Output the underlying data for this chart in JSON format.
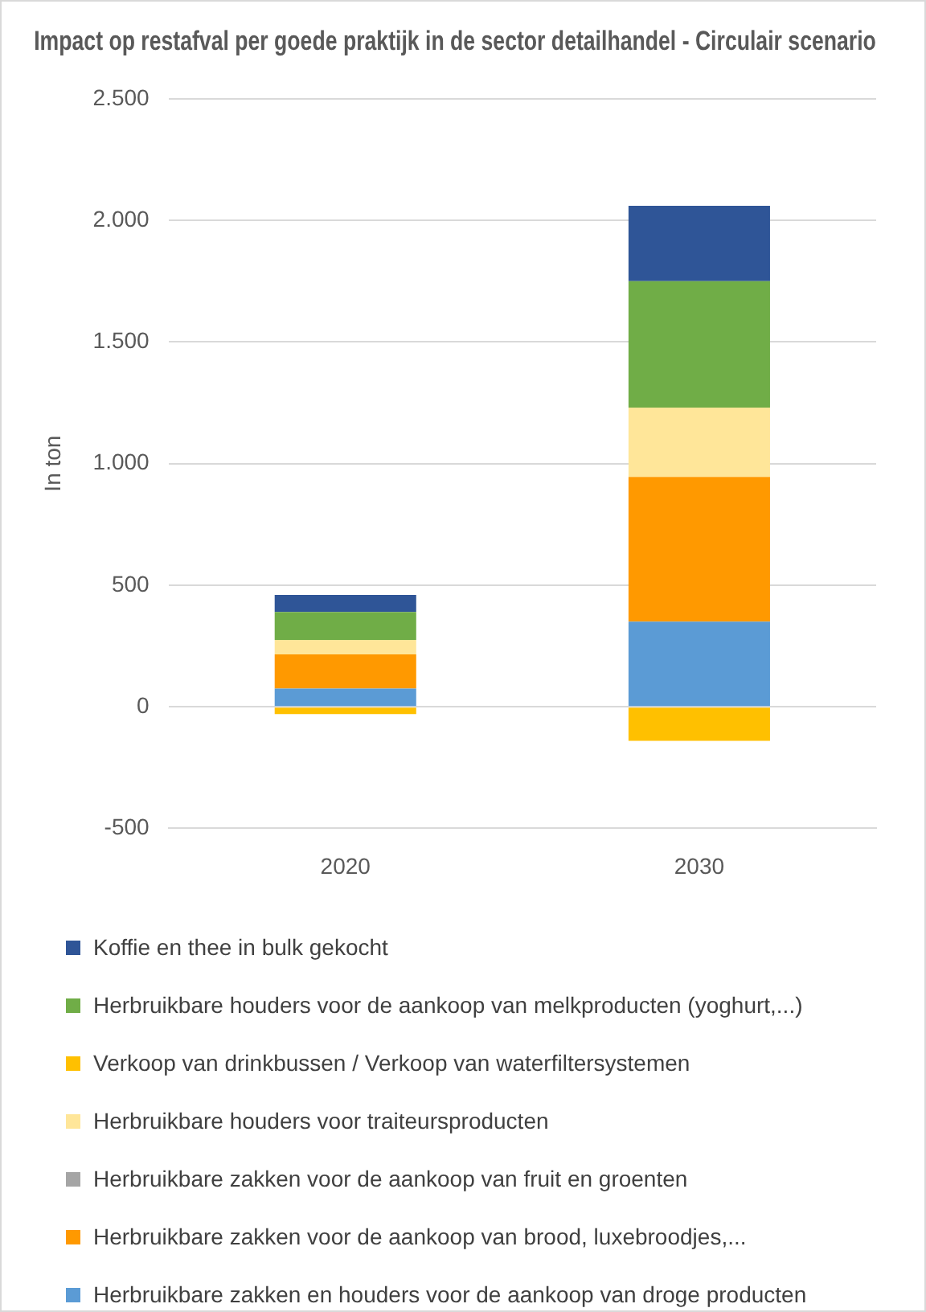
{
  "chart_data": {
    "type": "bar",
    "title": "Impact op restafval per goede praktijk in de sector detailhandel - Circulair scenario",
    "ylabel": "In ton",
    "categories": [
      "2020",
      "2030"
    ],
    "stacked": true,
    "grid": "y",
    "legend": "bottom",
    "ylim": [
      -500,
      2500
    ],
    "yticks": [
      {
        "value": -500,
        "label": "-500"
      },
      {
        "value": 0,
        "label": "0"
      },
      {
        "value": 500,
        "label": "500"
      },
      {
        "value": 1000,
        "label": "1.000"
      },
      {
        "value": 1500,
        "label": "1.500"
      },
      {
        "value": 2000,
        "label": "2.000"
      },
      {
        "value": 2500,
        "label": "2.500"
      }
    ],
    "series": [
      {
        "name": "Herbruikbare zakken en houders voor de aankoop van droge producten",
        "color": "#5b9bd5",
        "values": [
          75,
          350
        ]
      },
      {
        "name": "Herbruikbare zakken voor de aankoop van brood, luxebroodjes,...",
        "color": "#ff9900",
        "values": [
          140,
          595
        ]
      },
      {
        "name": "Herbruikbare zakken voor de aankoop van fruit en groenten",
        "color": "#a5a5a5",
        "values": [
          null,
          null
        ]
      },
      {
        "name": "Herbruikbare houders voor traiteursproducten",
        "color": "#ffe699",
        "values": [
          60,
          285
        ]
      },
      {
        "name": "Verkoop van drinkbussen / Verkoop van waterfiltersystemen",
        "color": "#ffc000",
        "values": [
          -30,
          -140
        ]
      },
      {
        "name": "Herbruikbare houders voor de aankoop van melkproducten (yoghurt,...)",
        "color": "#70ad47",
        "values": [
          115,
          520
        ]
      },
      {
        "name": "Koffie en thee in bulk gekocht",
        "color": "#2f5597",
        "values": [
          70,
          310
        ]
      }
    ]
  }
}
